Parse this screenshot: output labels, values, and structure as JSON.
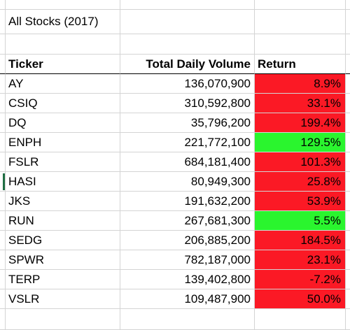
{
  "sheet": {
    "title": "All Stocks (2017)",
    "headers": {
      "ticker": "Ticker",
      "volume": "Total Daily Volume",
      "return": "Return"
    },
    "rows": [
      {
        "ticker": "AY",
        "volume": "136,070,900",
        "return": "8.9%",
        "status": "negative"
      },
      {
        "ticker": "CSIQ",
        "volume": "310,592,800",
        "return": "33.1%",
        "status": "negative"
      },
      {
        "ticker": "DQ",
        "volume": "35,796,200",
        "return": "199.4%",
        "status": "negative"
      },
      {
        "ticker": "ENPH",
        "volume": "221,772,100",
        "return": "129.5%",
        "status": "positive"
      },
      {
        "ticker": "FSLR",
        "volume": "684,181,400",
        "return": "101.3%",
        "status": "negative"
      },
      {
        "ticker": "HASI",
        "volume": "80,949,300",
        "return": "25.8%",
        "status": "negative"
      },
      {
        "ticker": "JKS",
        "volume": "191,632,200",
        "return": "53.9%",
        "status": "negative"
      },
      {
        "ticker": "RUN",
        "volume": "267,681,300",
        "return": "5.5%",
        "status": "positive"
      },
      {
        "ticker": "SEDG",
        "volume": "206,885,200",
        "return": "184.5%",
        "status": "negative"
      },
      {
        "ticker": "SPWR",
        "volume": "782,187,000",
        "return": "23.1%",
        "status": "negative"
      },
      {
        "ticker": "TERP",
        "volume": "139,402,800",
        "return": "-7.2%",
        "status": "negative"
      },
      {
        "ticker": "VSLR",
        "volume": "109,487,900",
        "return": "50.0%",
        "status": "negative"
      }
    ]
  },
  "colors": {
    "negative": "#fb1925",
    "positive": "#2af52e",
    "gridline": "#d4d4d4"
  }
}
